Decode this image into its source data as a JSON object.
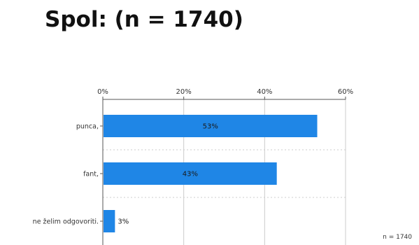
{
  "page": {
    "title": "Spol: (n = 1740)",
    "n_note": "n = 1740"
  },
  "chart_data": {
    "type": "bar",
    "orientation": "horizontal",
    "categories": [
      "punca,",
      "fant,",
      "ne želim odgovoriti."
    ],
    "values": [
      53,
      43,
      3
    ],
    "value_labels": [
      "53%",
      "43%",
      "3%"
    ],
    "axis": {
      "ticks": [
        0,
        20,
        40,
        60
      ],
      "tick_labels": [
        "0%",
        "20%",
        "40%",
        "60%"
      ],
      "xlim": [
        0,
        60
      ],
      "position": "top"
    },
    "grid": true,
    "colors": {
      "bar": "#1f86e6",
      "grid": "#cccccc",
      "axis": "#555555"
    }
  }
}
